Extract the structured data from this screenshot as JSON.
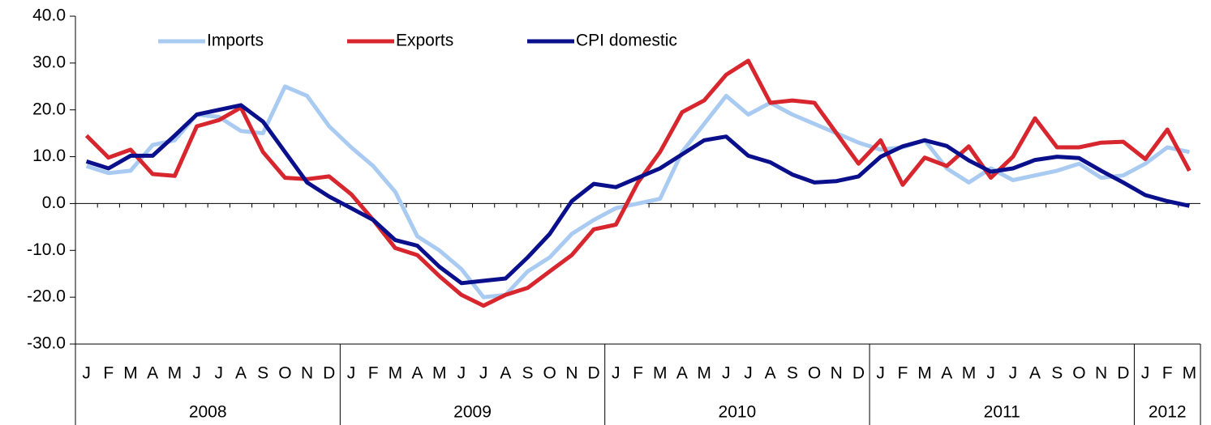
{
  "chart_data": {
    "type": "line",
    "categories": [
      "J",
      "F",
      "M",
      "A",
      "M",
      "J",
      "J",
      "A",
      "S",
      "O",
      "N",
      "D",
      "J",
      "F",
      "M",
      "A",
      "M",
      "J",
      "J",
      "A",
      "S",
      "O",
      "N",
      "D",
      "J",
      "F",
      "M",
      "A",
      "M",
      "J",
      "J",
      "A",
      "S",
      "O",
      "N",
      "D",
      "J",
      "F",
      "M",
      "A",
      "M",
      "J",
      "J",
      "A",
      "S",
      "O",
      "N",
      "D",
      "J",
      "F",
      "M"
    ],
    "x_groups": [
      {
        "label": "2008",
        "months": 12
      },
      {
        "label": "2009",
        "months": 12
      },
      {
        "label": "2010",
        "months": 12
      },
      {
        "label": "2011",
        "months": 12
      },
      {
        "label": "2012",
        "months": 3
      }
    ],
    "series": [
      {
        "name": "Imports",
        "color": "#a9cbf2",
        "values": [
          8,
          6.5,
          7,
          12.5,
          13.5,
          19,
          18.5,
          15.5,
          15,
          25,
          23,
          16.5,
          12,
          8,
          2.5,
          -7,
          -10,
          -14,
          -20,
          -19.5,
          -14.5,
          -11.5,
          -6.5,
          -3.5,
          -1,
          0,
          1,
          11,
          17,
          23,
          19,
          21.5,
          19,
          17,
          15,
          13,
          11.5,
          12,
          13.5,
          7.5,
          4.5,
          7.5,
          5,
          6,
          7,
          8.5,
          5.5,
          6,
          8.5,
          12,
          11
        ]
      },
      {
        "name": "Exports",
        "color": "#d7262e",
        "values": [
          14.5,
          9.8,
          11.5,
          6.3,
          5.9,
          16.5,
          17.8,
          20.5,
          11,
          5.5,
          5.2,
          5.8,
          2,
          -3.5,
          -9.5,
          -11,
          -15.5,
          -19.5,
          -21.8,
          -19.5,
          -18,
          -14.5,
          -11,
          -5.5,
          -4.5,
          4.5,
          11,
          19.5,
          22,
          27.5,
          30.5,
          21.5,
          22,
          21.5,
          15,
          8.5,
          13.5,
          4,
          9.8,
          8,
          12.2,
          5.5,
          10,
          18.2,
          12,
          12,
          13,
          13.2,
          9.5,
          15.8,
          7
        ]
      },
      {
        "name": "CPI domestic",
        "color": "#0a0f8c",
        "values": [
          9,
          7.5,
          10.2,
          10.2,
          14.5,
          19,
          20,
          21,
          17.5,
          11,
          4.5,
          1.5,
          -1,
          -3.5,
          -7.8,
          -9,
          -13.5,
          -17,
          -16.5,
          -16,
          -11.5,
          -6.5,
          0.5,
          4.2,
          3.5,
          5.5,
          7.5,
          10.5,
          13.5,
          14.3,
          10.2,
          8.8,
          6.2,
          4.5,
          4.8,
          5.8,
          10,
          12.2,
          13.5,
          12.3,
          9.2,
          6.8,
          7.5,
          9.3,
          10,
          9.7,
          7,
          4.5,
          1.8,
          0.5,
          -0.5
        ]
      }
    ],
    "ylim": [
      -30,
      40
    ],
    "yticks": [
      {
        "value": -30,
        "label": "-30.0"
      },
      {
        "value": -20,
        "label": "-20.0"
      },
      {
        "value": -10,
        "label": "-10.0"
      },
      {
        "value": 0,
        "label": "0.0"
      },
      {
        "value": 10,
        "label": "10.0"
      },
      {
        "value": 20,
        "label": "20.0"
      },
      {
        "value": 30,
        "label": "30.0"
      },
      {
        "value": 40,
        "label": "40.0"
      }
    ],
    "legend": "top-left"
  }
}
